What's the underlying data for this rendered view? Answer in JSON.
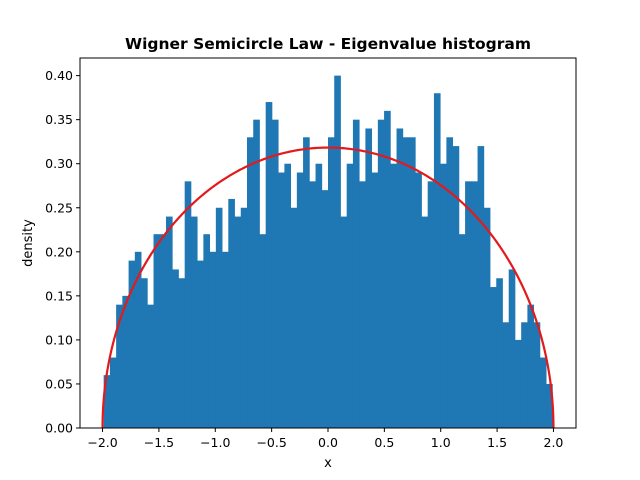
{
  "chart_data": {
    "type": "bar",
    "title": "Wigner Semicircle Law - Eigenvalue histogram",
    "xlabel": "x",
    "ylabel": "density",
    "xlim": [
      -2.2,
      2.2
    ],
    "ylim": [
      0,
      0.42
    ],
    "xticks": [
      -2.0,
      -1.5,
      -1.0,
      -0.5,
      0.0,
      0.5,
      1.0,
      1.5,
      2.0
    ],
    "xtick_labels": [
      "−2.0",
      "−1.5",
      "−1.0",
      "−0.5",
      "0.0",
      "0.5",
      "1.0",
      "1.5",
      "2.0"
    ],
    "yticks": [
      0.0,
      0.05,
      0.1,
      0.15,
      0.2,
      0.25,
      0.3,
      0.35,
      0.4
    ],
    "ytick_labels": [
      "0.00",
      "0.05",
      "0.10",
      "0.15",
      "0.20",
      "0.25",
      "0.30",
      "0.35",
      "0.40"
    ],
    "grid": false,
    "bin_edges_range": [
      -1.99,
      1.99
    ],
    "histogram": {
      "color": "#1f77b4",
      "values": [
        0.06,
        0.08,
        0.14,
        0.15,
        0.19,
        0.2,
        0.17,
        0.14,
        0.22,
        0.22,
        0.24,
        0.18,
        0.17,
        0.28,
        0.24,
        0.19,
        0.22,
        0.2,
        0.25,
        0.2,
        0.26,
        0.24,
        0.25,
        0.33,
        0.35,
        0.22,
        0.37,
        0.35,
        0.29,
        0.3,
        0.25,
        0.29,
        0.33,
        0.28,
        0.3,
        0.27,
        0.33,
        0.4,
        0.24,
        0.3,
        0.35,
        0.28,
        0.34,
        0.29,
        0.35,
        0.36,
        0.3,
        0.34,
        0.33,
        0.33,
        0.29,
        0.24,
        0.28,
        0.38,
        0.3,
        0.33,
        0.32,
        0.22,
        0.28,
        0.28,
        0.32,
        0.25,
        0.16,
        0.17,
        0.12,
        0.18,
        0.1,
        0.12,
        0.14,
        0.12,
        0.08,
        0.05
      ]
    },
    "curve": {
      "color": "#e31a1c",
      "formula": "sqrt(4 - x^2) / (2*pi)",
      "x_range": [
        -2,
        2
      ]
    }
  }
}
